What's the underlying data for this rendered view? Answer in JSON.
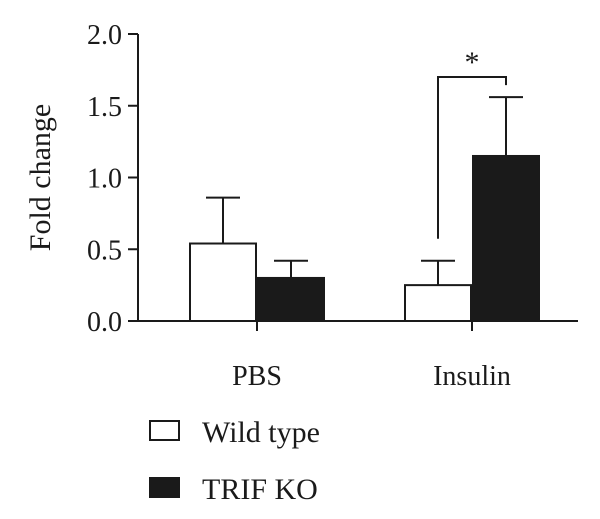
{
  "chart_data": {
    "type": "bar",
    "categories": [
      "PBS",
      "Insulin"
    ],
    "ylabel": "Fold change",
    "xlabel": "",
    "ylim": [
      0,
      2.0
    ],
    "yticks": [
      "0.0",
      "0.5",
      "1.0",
      "1.5",
      "2.0"
    ],
    "grid": false,
    "legend_position": "bottom-left",
    "series": [
      {
        "name": "Wild type",
        "values": [
          0.54,
          0.25
        ],
        "errors": [
          0.32,
          0.17
        ],
        "fill": "#ffffff",
        "stroke": "#1a1a1a"
      },
      {
        "name": "TRIF KO",
        "values": [
          0.3,
          1.15
        ],
        "errors": [
          0.12,
          0.41
        ],
        "fill": "#1a1a1a",
        "stroke": "#1a1a1a"
      }
    ],
    "annotations": [
      {
        "text": "*",
        "category": "Insulin",
        "between_series": [
          "Wild type",
          "TRIF KO"
        ]
      }
    ]
  }
}
